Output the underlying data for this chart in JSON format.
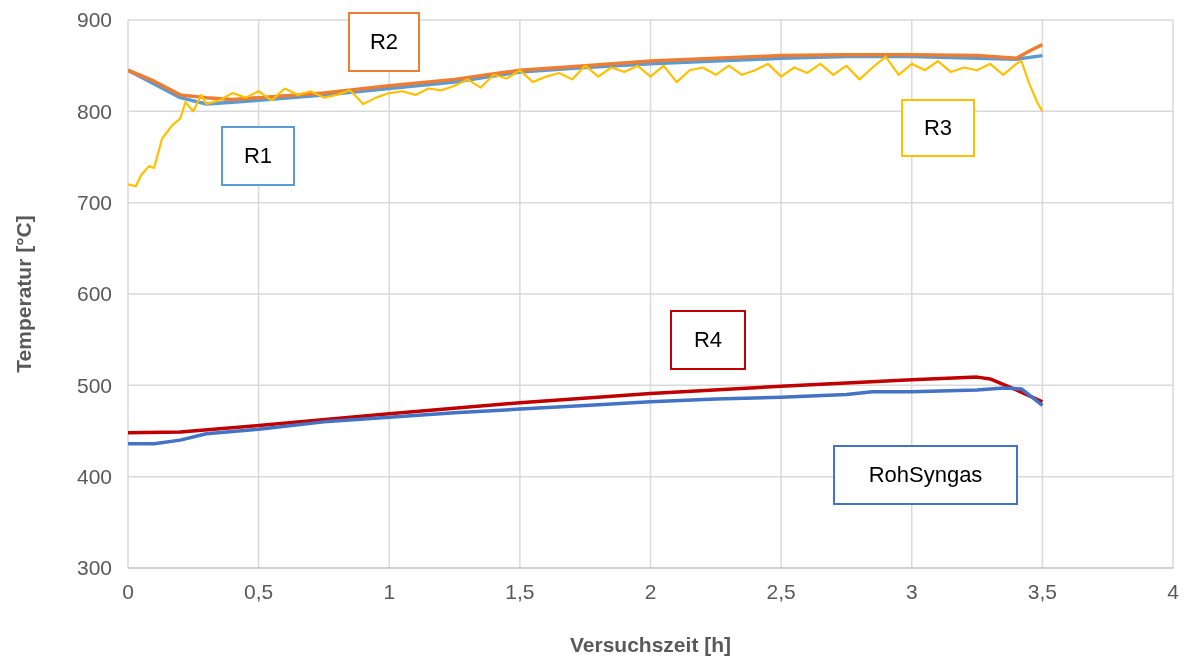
{
  "chart_data": {
    "type": "line",
    "xlabel": "Versuchszeit [h]",
    "ylabel": "Temperatur [°C]",
    "xlim": [
      0,
      4
    ],
    "xticks": [
      0,
      {
        "value": 0.5,
        "label": "0,5"
      },
      1,
      {
        "value": 1.5,
        "label": "1,5"
      },
      2,
      {
        "value": 2.5,
        "label": "2,5"
      },
      3,
      {
        "value": 3.5,
        "label": "3,5"
      },
      4
    ],
    "ylim": [
      300,
      900
    ],
    "yticks": [
      300,
      400,
      500,
      600,
      700,
      800,
      900
    ],
    "grid": true,
    "legend": false,
    "marker": "none",
    "line_style": "solid",
    "series": [
      {
        "name": "R1",
        "color": "#5b9bd5",
        "x": [
          0,
          0.1,
          0.2,
          0.3,
          0.4,
          0.5,
          0.75,
          1,
          1.25,
          1.5,
          1.75,
          2,
          2.25,
          2.5,
          2.75,
          3,
          3.25,
          3.4,
          3.5
        ],
        "values": [
          845,
          830,
          815,
          808,
          810,
          812,
          818,
          825,
          832,
          843,
          848,
          852,
          855,
          858,
          860,
          860,
          858,
          857,
          861
        ]
      },
      {
        "name": "R2",
        "color": "#ed7d31",
        "x": [
          0,
          0.1,
          0.2,
          0.3,
          0.4,
          0.5,
          0.75,
          1,
          1.25,
          1.5,
          1.75,
          2,
          2.25,
          2.5,
          2.75,
          3,
          3.25,
          3.4,
          3.45,
          3.5
        ],
        "values": [
          845,
          833,
          818,
          815,
          813,
          815,
          820,
          828,
          835,
          845,
          850,
          855,
          858,
          861,
          862,
          862,
          861,
          858,
          866,
          873
        ]
      },
      {
        "name": "R3",
        "color": "#ffc000",
        "x": [
          0,
          0.03,
          0.05,
          0.08,
          0.1,
          0.13,
          0.17,
          0.2,
          0.22,
          0.25,
          0.28,
          0.3,
          0.35,
          0.4,
          0.45,
          0.5,
          0.55,
          0.6,
          0.65,
          0.7,
          0.75,
          0.8,
          0.85,
          0.9,
          0.95,
          1,
          1.05,
          1.1,
          1.15,
          1.2,
          1.25,
          1.3,
          1.35,
          1.4,
          1.45,
          1.5,
          1.55,
          1.6,
          1.65,
          1.7,
          1.75,
          1.8,
          1.85,
          1.9,
          1.95,
          2,
          2.05,
          2.1,
          2.15,
          2.2,
          2.25,
          2.3,
          2.35,
          2.4,
          2.45,
          2.5,
          2.55,
          2.6,
          2.65,
          2.7,
          2.75,
          2.8,
          2.85,
          2.9,
          2.95,
          3,
          3.05,
          3.1,
          3.15,
          3.2,
          3.25,
          3.3,
          3.35,
          3.4,
          3.42,
          3.45,
          3.48,
          3.5
        ],
        "values": [
          720,
          718,
          730,
          740,
          738,
          770,
          785,
          792,
          810,
          800,
          818,
          808,
          812,
          820,
          815,
          822,
          812,
          825,
          818,
          822,
          815,
          818,
          823,
          808,
          815,
          820,
          822,
          818,
          825,
          823,
          828,
          835,
          826,
          840,
          836,
          845,
          832,
          838,
          842,
          835,
          850,
          838,
          848,
          843,
          850,
          838,
          850,
          832,
          845,
          848,
          840,
          850,
          840,
          845,
          852,
          838,
          848,
          842,
          852,
          840,
          850,
          835,
          848,
          860,
          840,
          852,
          845,
          855,
          843,
          848,
          845,
          852,
          840,
          852,
          855,
          830,
          810,
          800
        ]
      },
      {
        "name": "R4",
        "color": "#c00000",
        "x": [
          0,
          0.2,
          0.5,
          1,
          1.5,
          2,
          2.5,
          3,
          3.25,
          3.3,
          3.4,
          3.5
        ],
        "values": [
          448,
          449,
          456,
          469,
          481,
          491,
          499,
          506,
          509,
          507,
          495,
          482
        ]
      },
      {
        "name": "RohSyngas",
        "color": "#4472c4",
        "x": [
          0,
          0.1,
          0.2,
          0.3,
          0.5,
          0.75,
          1,
          1.25,
          1.5,
          1.75,
          2,
          2.25,
          2.5,
          2.75,
          2.85,
          3,
          3.25,
          3.35,
          3.42,
          3.5
        ],
        "values": [
          436,
          436,
          440,
          447,
          452,
          460,
          465,
          470,
          474,
          478,
          482,
          485,
          487,
          490,
          493,
          493,
          495,
          497,
          496,
          478
        ]
      }
    ]
  }
}
